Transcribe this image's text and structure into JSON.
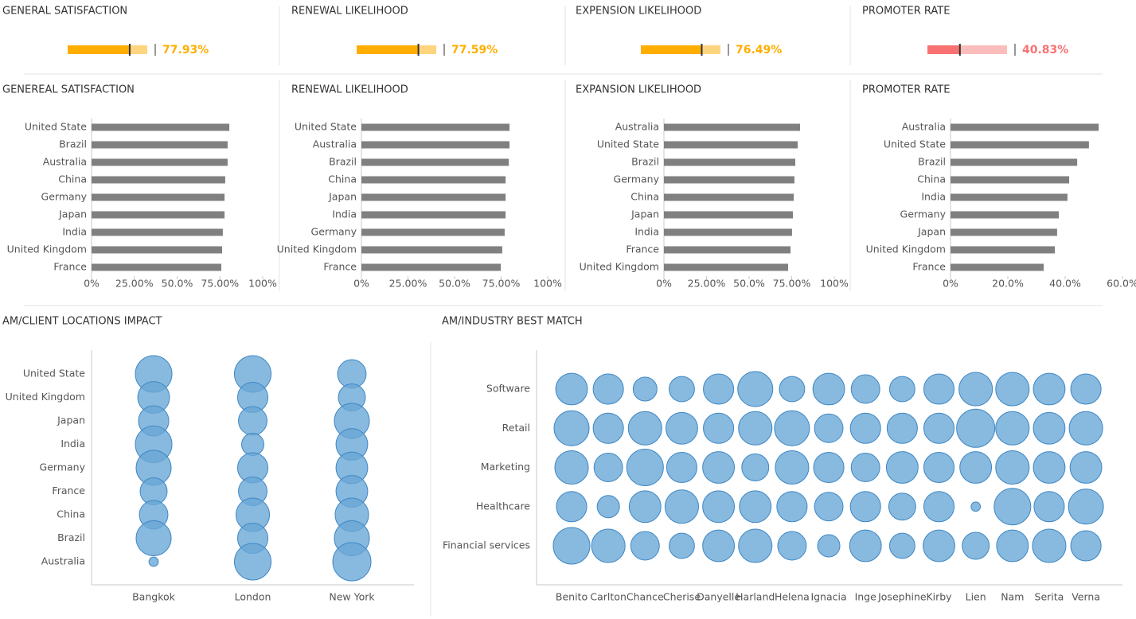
{
  "chart_data": [
    {
      "type": "bullet",
      "title": "GENERAL SATISFACTION",
      "values": [
        77.93
      ],
      "value_labels": [
        "77.93%"
      ],
      "xlim": [
        0,
        100
      ],
      "color": "#ffae00",
      "range_color": "#ffd47f"
    },
    {
      "type": "bullet",
      "title": "RENEWAL LIKELIHOOD",
      "values": [
        77.59
      ],
      "value_labels": [
        "77.59%"
      ],
      "xlim": [
        0,
        100
      ],
      "color": "#ffae00",
      "range_color": "#ffd47f"
    },
    {
      "type": "bullet",
      "title": "EXPENSION LIKELIHOOD",
      "values": [
        76.49
      ],
      "value_labels": [
        "76.49%"
      ],
      "xlim": [
        0,
        100
      ],
      "color": "#ffae00",
      "range_color": "#ffd47f"
    },
    {
      "type": "bullet",
      "title": "PROMOTER RATE",
      "values": [
        40.83
      ],
      "value_labels": [
        "40.83%"
      ],
      "xlim": [
        0,
        100
      ],
      "color": "#f87272",
      "range_color": "#fbbcbc"
    },
    {
      "type": "bar",
      "title": "GENEREAL SATISFACTION",
      "categories": [
        "United State",
        "Brazil",
        "Australia",
        "China",
        "Germany",
        "Japan",
        "India",
        "United Kingdom",
        "France"
      ],
      "values": [
        80.5,
        79.5,
        79.5,
        78.1,
        77.7,
        77.7,
        76.7,
        76.3,
        75.8
      ],
      "xlim": [
        0,
        100
      ],
      "xticks": [
        {
          "value": 0,
          "label": "0%"
        },
        {
          "value": 25,
          "label": "25.00%"
        },
        {
          "value": 50,
          "label": "50.0%"
        },
        {
          "value": 75,
          "label": "75.00%"
        },
        {
          "value": 100,
          "label": "100%"
        }
      ],
      "color": "#808080"
    },
    {
      "type": "bar",
      "title": "RENEWAL LIKELIHOOD",
      "categories": [
        "United State",
        "Australia",
        "Brazil",
        "China",
        "Japan",
        "India",
        "Germany",
        "United Kingdom",
        "France"
      ],
      "values": [
        79.5,
        79.5,
        79.1,
        77.4,
        77.4,
        77.4,
        76.9,
        75.6,
        74.8
      ],
      "xlim": [
        0,
        100
      ],
      "xticks": [
        {
          "value": 0,
          "label": "0%"
        },
        {
          "value": 25,
          "label": "25.00%"
        },
        {
          "value": 50,
          "label": "50.0%"
        },
        {
          "value": 75,
          "label": "75.00%"
        },
        {
          "value": 100,
          "label": "100%"
        }
      ],
      "color": "#808080"
    },
    {
      "type": "bar",
      "title": "EXPANSION LIKELIHOOD",
      "categories": [
        "Australia",
        "United State",
        "Brazil",
        "Germany",
        "China",
        "Japan",
        "India",
        "France",
        "United Kingdom"
      ],
      "values": [
        79.9,
        78.5,
        77.1,
        76.6,
        76.2,
        75.7,
        75.2,
        74.3,
        72.9
      ],
      "xlim": [
        0,
        100
      ],
      "xticks": [
        {
          "value": 0,
          "label": "0%"
        },
        {
          "value": 25,
          "label": "25.00%"
        },
        {
          "value": 50,
          "label": "50.0%"
        },
        {
          "value": 75,
          "label": "75.00%"
        },
        {
          "value": 100,
          "label": "100%"
        }
      ],
      "color": "#808080"
    },
    {
      "type": "bar",
      "title": "PROMOTER RATE",
      "categories": [
        "Australia",
        "United State",
        "Brazil",
        "China",
        "India",
        "Germany",
        "Japan",
        "United Kingdom",
        "France"
      ],
      "values": [
        51.7,
        48.3,
        44.2,
        41.4,
        40.8,
        37.8,
        37.2,
        36.4,
        32.5
      ],
      "xlim": [
        0,
        60
      ],
      "xticks": [
        {
          "value": 0,
          "label": "0%"
        },
        {
          "value": 20,
          "label": "20.0%"
        },
        {
          "value": 40,
          "label": "40.0%"
        },
        {
          "value": 60,
          "label": "60.0%"
        }
      ],
      "color": "#808080"
    },
    {
      "type": "bubble",
      "title": "AM/CLIENT LOCATIONS IMPACT",
      "x_categories": [
        "Bangkok",
        "London",
        "New York"
      ],
      "y_categories": [
        "United State",
        "United Kingdom",
        "Japan",
        "India",
        "Germany",
        "France",
        "China",
        "Brazil",
        "Australia"
      ],
      "sizes": [
        [
          92,
          92,
          56
        ],
        [
          69,
          63,
          50
        ],
        [
          63,
          56,
          84
        ],
        [
          92,
          34,
          69
        ],
        [
          84,
          63,
          69
        ],
        [
          50,
          56,
          69
        ],
        [
          56,
          77,
          77
        ],
        [
          84,
          63,
          84
        ],
        [
          6,
          92,
          100
        ]
      ],
      "color": "#6aa8d6"
    },
    {
      "type": "bubble",
      "title": "AM/INDUSTRY BEST MATCH",
      "x_categories": [
        "Benito",
        "Carlton",
        "Chance",
        "Cherise",
        "Danyelle",
        "Harland",
        "Helena",
        "Ignacia",
        "Inge",
        "Josephine",
        "Kirby",
        "Lien",
        "Nam",
        "Serita",
        "Verna"
      ],
      "y_categories": [
        "Software",
        "Retail",
        "Marketing",
        "Healthcare",
        "Financial services"
      ],
      "sizes": [
        [
          69,
          63,
          39,
          44,
          63,
          84,
          44,
          69,
          56,
          44,
          63,
          77,
          77,
          69,
          63
        ],
        [
          84,
          63,
          77,
          69,
          63,
          77,
          84,
          56,
          63,
          63,
          63,
          100,
          77,
          69,
          77
        ],
        [
          77,
          56,
          92,
          63,
          69,
          50,
          77,
          63,
          56,
          69,
          63,
          69,
          77,
          69,
          69
        ],
        [
          63,
          34,
          69,
          77,
          69,
          69,
          63,
          56,
          63,
          50,
          63,
          6,
          92,
          63,
          84
        ],
        [
          92,
          77,
          56,
          44,
          69,
          77,
          56,
          34,
          69,
          44,
          69,
          50,
          69,
          77,
          63
        ]
      ],
      "color": "#6aa8d6"
    }
  ]
}
